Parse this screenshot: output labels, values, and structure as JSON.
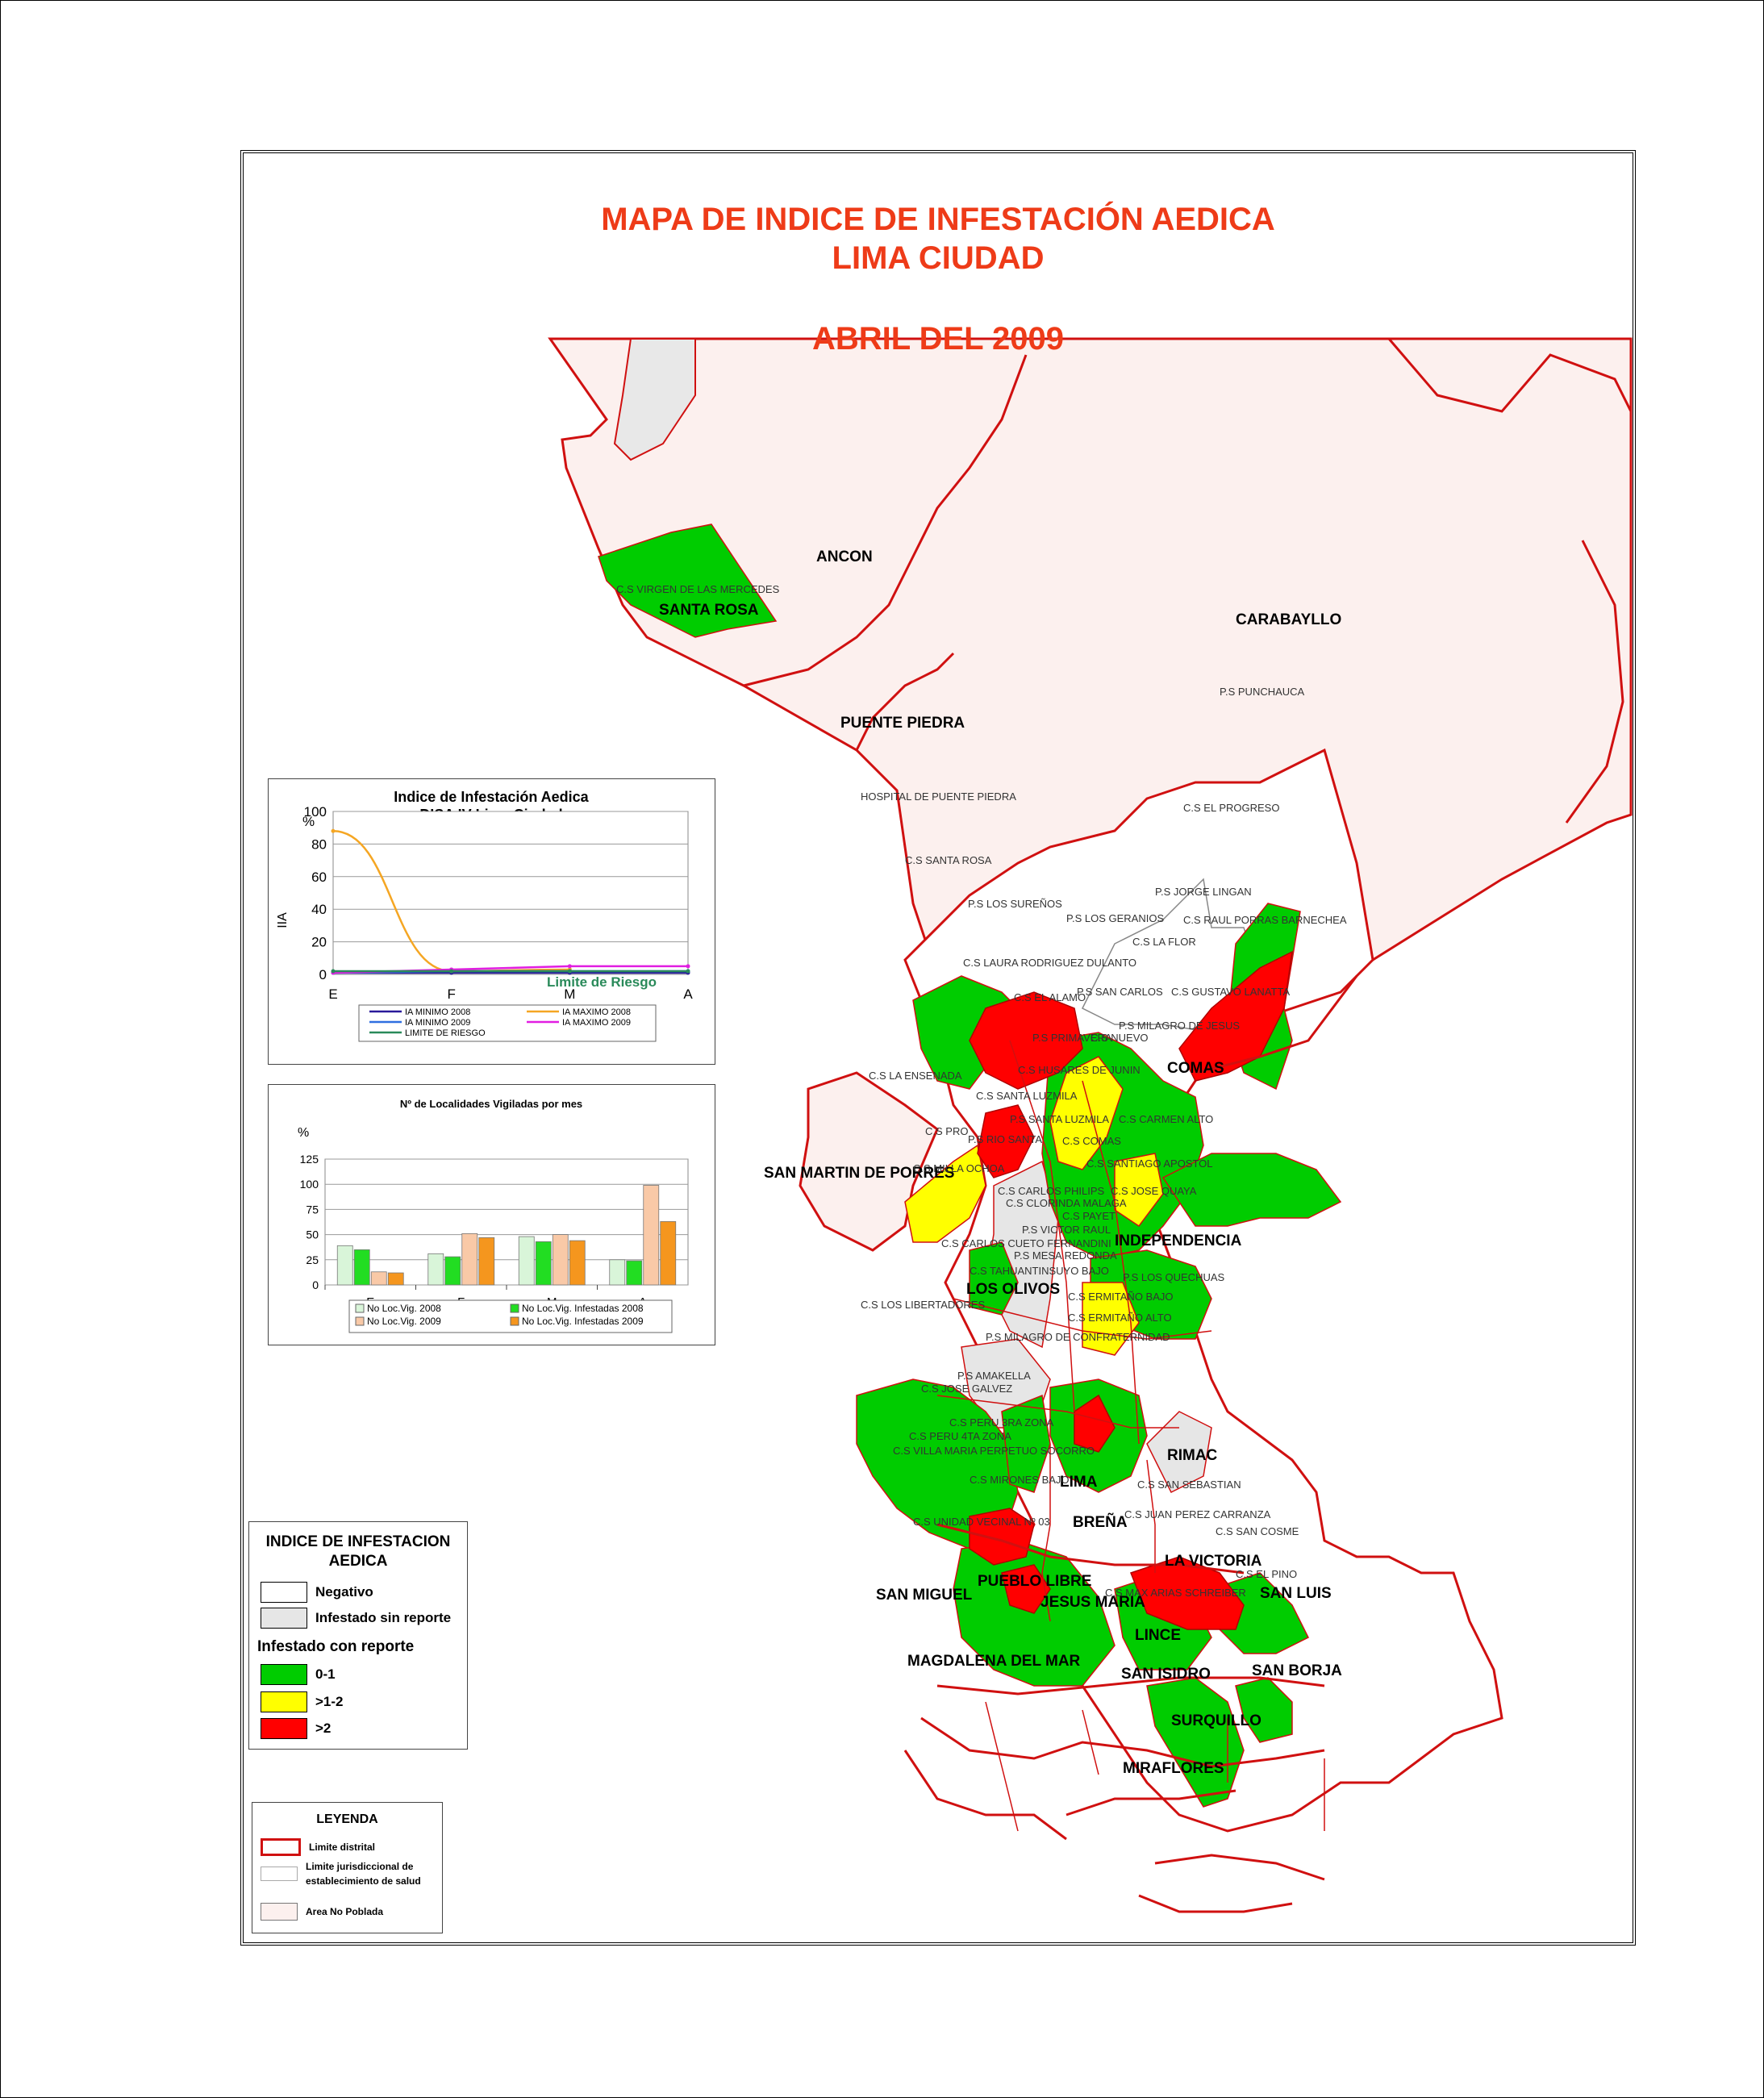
{
  "title": {
    "line1": "MAPA DE INDICE DE INFESTACIÓN AEDICA",
    "line2": "LIMA CIUDAD",
    "line3": "ABRIL DEL 2009"
  },
  "colors": {
    "green": "#00cc00",
    "yellow": "#ffff00",
    "red": "#ff0000",
    "no_poblada": "#fcf0ee",
    "sin_reporte": "#e6e6e6",
    "boundary": "#d01010",
    "title": "#ee3b18"
  },
  "districts": [
    "ANCON",
    "SANTA ROSA",
    "CARABAYLLO",
    "PUENTE PIEDRA",
    "COMAS",
    "SAN MARTIN DE PORRES",
    "INDEPENDENCIA",
    "LOS OLIVOS",
    "RIMAC",
    "LIMA",
    "BREÑA",
    "LA VICTORIA",
    "SAN LUIS",
    "PUEBLO LIBRE",
    "JESUS MARIA",
    "SAN MIGUEL",
    "LINCE",
    "MAGDALENA DEL MAR",
    "SAN ISIDRO",
    "SAN BORJA",
    "SURQUILLO",
    "MIRAFLORES"
  ],
  "facilities": [
    "C.S VIRGEN DE LAS MERCEDES",
    "P.S PUNCHAUCA",
    "HOSPITAL DE PUENTE PIEDRA",
    "C.S EL PROGRESO",
    "C.S SANTA ROSA",
    "P.S JORGE LINGAN",
    "P.S LOS SUREÑOS",
    "P.S LOS GERANIOS",
    "C.S RAUL PORRAS BARNECHEA",
    "C.S LA FLOR",
    "C.S LAURA RODRIGUEZ DULANTO",
    "P.S SAN CARLOS",
    "C.S GUSTAVO LANATTA",
    "C.S EL ALAMO",
    "P.S MILAGRO DE JESUS",
    "P.S PRIMAVERA",
    "C.S NUEVO",
    "C.S HUSARES DE JUNIN",
    "C.S LA ENSENADA",
    "C.S SANTA LUZMILA",
    "P.S SANTA LUZMILA",
    "C.S CARMEN ALTO",
    "C.S PRO",
    "P.S RIO SANTA",
    "C.S COMAS",
    "C.S SANTIAGO APOSTOL",
    "C.S MILLA OCHOA",
    "C.S CARLOS PHILIPS",
    "C.S JOSE QUAYA",
    "C.S CLORINDA MALAGA",
    "C.S PAYET",
    "P.S VICTOR RAUL",
    "C.S CARLOS CUETO FERNANDINI",
    "P.S MESA REDONDA",
    "C.S TAHUANTINSUYO BAJO",
    "P.S LOS QUECHUAS",
    "C.S LOS LIBERTADORES",
    "C.S ERMITAÑO BAJO",
    "C.S ERMITAÑO ALTO",
    "P.S MILAGRO DE CONFRATERNIDAD",
    "P.S AMAKELLA",
    "C.S JOSE GALVEZ",
    "C.S PERU 3RA ZONA",
    "C.S PERU 4TA ZONA",
    "C.S VILLA MARIA PERPETUO SOCORRO",
    "C.S MIRONES BAJO",
    "C.S SAN SEBASTIAN",
    "C.S UNIDAD VECINAL Nº 03",
    "C.S JUAN PEREZ CARRANZA",
    "C.S SAN COSME",
    "C.S EL PINO",
    "C.S MAX ARIAS SCHREIBER"
  ],
  "chart1": {
    "title_line1": "Indice de Infestación Aedica",
    "title_line2": "DISA IV Lima Ciudad",
    "unit": "%",
    "ylabel": "IIA",
    "yticks": [
      "100",
      "80",
      "60",
      "40",
      "20",
      "0"
    ],
    "risk_label": "Limite de Riesgo",
    "legend": [
      "IA MINIMO 2008",
      "IA MAXIMO 2008",
      "IA MINIMO 2009",
      "IA MAXIMO 2009",
      "LIMITE DE RIESGO"
    ]
  },
  "chart2": {
    "title": "Nº de Localidades Vigiladas por mes",
    "unit": "%",
    "yticks": [
      "125",
      "100",
      "75",
      "50",
      "25",
      "0"
    ],
    "legend": [
      "No Loc.Vig. 2008",
      "No Loc.Vig. Infestadas 2008",
      "No Loc.Vig. 2009",
      "No Loc.Vig. Infestadas 2009"
    ]
  },
  "chart_data": [
    {
      "type": "line",
      "title": "Indice de Infestación Aedica DISA IV Lima Ciudad",
      "ylabel": "IIA",
      "x": [
        "E",
        "F",
        "M",
        "A"
      ],
      "ylim": [
        0,
        100
      ],
      "grid": true,
      "legend_placement": "bottom",
      "series": [
        {
          "name": "IA MINIMO 2008",
          "color": "#2a1a9a",
          "values": [
            1,
            1,
            1,
            1
          ]
        },
        {
          "name": "IA MAXIMO 2008",
          "color": "#f5a623",
          "values": [
            88,
            2,
            3,
            null
          ]
        },
        {
          "name": "IA MINIMO 2009",
          "color": "#2f6fe0",
          "values": [
            1,
            2,
            2,
            2
          ]
        },
        {
          "name": "IA MAXIMO 2009",
          "color": "#e11ee1",
          "values": [
            1,
            3,
            5,
            5
          ]
        },
        {
          "name": "LIMITE DE RIESGO",
          "color": "#2a8a5a",
          "values": [
            2,
            2,
            2,
            2
          ]
        }
      ]
    },
    {
      "type": "bar",
      "title": "Nº de Localidades Vigiladas por mes",
      "categories": [
        "E",
        "F",
        "M",
        "A"
      ],
      "ylim": [
        0,
        125
      ],
      "grid": true,
      "legend_placement": "bottom",
      "series": [
        {
          "name": "No Loc.Vig. 2008",
          "color": "#d9f5d9",
          "values": [
            39,
            31,
            48,
            25
          ]
        },
        {
          "name": "No Loc.Vig. Infestadas 2008",
          "color": "#22dd22",
          "values": [
            35,
            28,
            43,
            24
          ]
        },
        {
          "name": "No Loc.Vig. 2009",
          "color": "#f9c9a7",
          "values": [
            13,
            51,
            50,
            99
          ]
        },
        {
          "name": "No Loc.Vig. Infestadas 2009",
          "color": "#f5961e",
          "values": [
            12,
            47,
            44,
            63
          ]
        }
      ]
    }
  ],
  "legend_iia": {
    "title_line1": "INDICE DE INFESTACION",
    "title_line2": "AEDICA",
    "negativo": "Negativo",
    "sin_reporte": "Infestado sin reporte",
    "con_reporte": "Infestado con reporte",
    "r1": "0-1",
    "r2": ">1-2",
    "r3": ">2"
  },
  "legend_map": {
    "title": "LEYENDA",
    "limite_distrital": "Limite distrital",
    "limite_jur_1": "Limite jurisdiccional de",
    "limite_jur_2": "establecimiento de salud",
    "area_no_poblada": "Area No Poblada"
  }
}
